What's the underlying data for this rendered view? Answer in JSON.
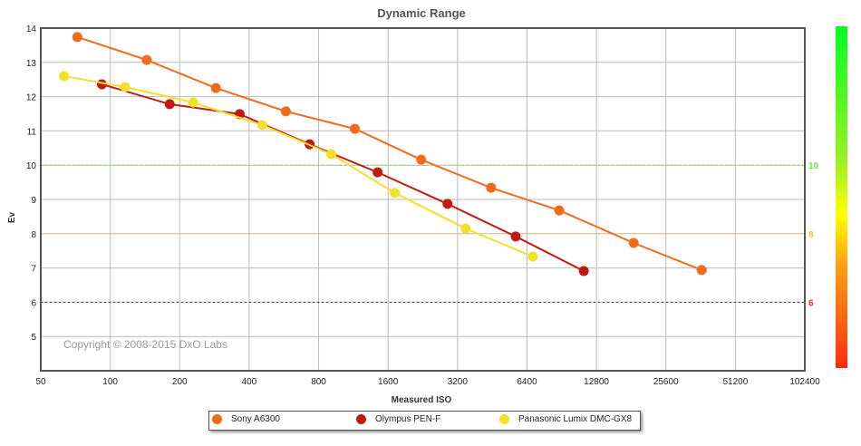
{
  "chart_data": {
    "type": "line",
    "title": "Dynamic Range",
    "xlabel": "Measured ISO",
    "ylabel": "Ev",
    "xscale": "log2",
    "xlim": [
      50,
      102400
    ],
    "ylim": [
      4,
      14
    ],
    "x_ticks": [
      "50",
      "100",
      "200",
      "400",
      "800",
      "1600",
      "3200",
      "6400",
      "12800",
      "25600",
      "51200",
      "102400"
    ],
    "y_ticks": [
      "5",
      "6",
      "7",
      "8",
      "9",
      "10",
      "11",
      "12",
      "13",
      "14"
    ],
    "grid": true,
    "reference_lines": [
      {
        "value": 10,
        "label": "10",
        "color": "#7ee03a"
      },
      {
        "value": 8,
        "label": "8",
        "color": "#f5c030"
      },
      {
        "value": 6,
        "label": "6",
        "color": "#e03030"
      }
    ],
    "copyright": "Copyright © 2008-2015 DxO Labs",
    "legend_position": "bottom",
    "series": [
      {
        "name": "Sony A6300",
        "color": "#f26a1b",
        "x": [
          72,
          144,
          287,
          577,
          1149,
          2227,
          4474,
          8830,
          18560,
          36600
        ],
        "y": [
          13.74,
          13.07,
          12.25,
          11.57,
          11.06,
          10.16,
          9.34,
          8.68,
          7.73,
          6.94
        ]
      },
      {
        "name": "Olympus PEN-F",
        "color": "#c01a12",
        "x": [
          92,
          181,
          364,
          731,
          1442,
          2896,
          5716,
          11280
        ],
        "y": [
          12.36,
          11.78,
          11.49,
          10.61,
          9.79,
          8.87,
          7.92,
          6.91
        ]
      },
      {
        "name": "Panasonic Lumix DMC-GX8",
        "color": "#f2e02a",
        "x": [
          63,
          116,
          229,
          456,
          908,
          1712,
          3472,
          6788
        ],
        "y": [
          12.6,
          12.28,
          11.83,
          11.17,
          10.32,
          9.19,
          8.15,
          7.33
        ]
      }
    ]
  }
}
